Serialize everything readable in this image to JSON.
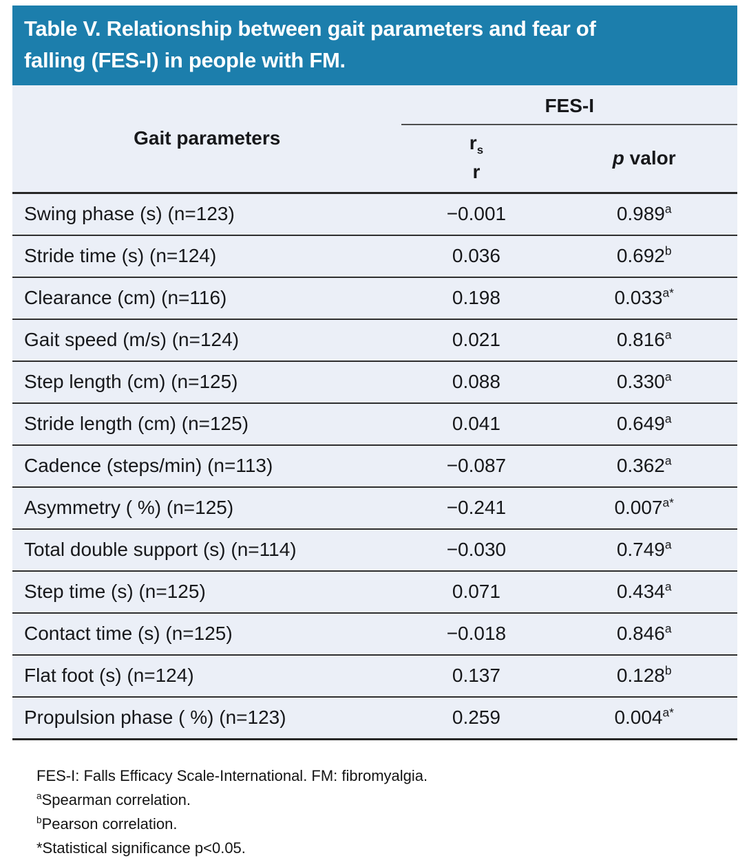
{
  "colors": {
    "accent": "#1c7eac",
    "table_body_bg": "#ebeff7",
    "title_text": "#ffffff",
    "rule_dark": "#262626"
  },
  "table": {
    "title_lines": [
      "Table V. Relationship between gait parameters and fear of",
      "falling (FES-I) in people with FM."
    ],
    "header": {
      "col1": "Gait parameters",
      "group": "FES-I",
      "r_line1_base": "r",
      "r_line1_sub": "s",
      "r_line2": "r",
      "p_italic": "p",
      "p_rest": " valor"
    },
    "rows": [
      {
        "label": "Swing phase (s) (n=123)",
        "r": "−0.001",
        "p": "0.989",
        "p_sup": "a"
      },
      {
        "label": "Stride time (s) (n=124)",
        "r": "0.036",
        "p": "0.692",
        "p_sup": "b"
      },
      {
        "label": "Clearance (cm) (n=116)",
        "r": "0.198",
        "p": "0.033",
        "p_sup": "a*"
      },
      {
        "label": "Gait speed (m/s) (n=124)",
        "r": "0.021",
        "p": "0.816",
        "p_sup": "a"
      },
      {
        "label": "Step length (cm) (n=125)",
        "r": "0.088",
        "p": "0.330",
        "p_sup": "a"
      },
      {
        "label": "Stride length (cm) (n=125)",
        "r": "0.041",
        "p": "0.649",
        "p_sup": "a"
      },
      {
        "label": "Cadence (steps/min) (n=113)",
        "r": "−0.087",
        "p": "0.362",
        "p_sup": "a"
      },
      {
        "label": "Asymmetry ( %) (n=125)",
        "r": "−0.241",
        "p": "0.007",
        "p_sup": "a*"
      },
      {
        "label": "Total double support (s) (n=114)",
        "r": "−0.030",
        "p": "0.749",
        "p_sup": "a"
      },
      {
        "label": "Step time (s) (n=125)",
        "r": "0.071",
        "p": "0.434",
        "p_sup": "a"
      },
      {
        "label": "Contact time (s) (n=125)",
        "r": "−0.018",
        "p": "0.846",
        "p_sup": "a"
      },
      {
        "label": "Flat foot (s) (n=124)",
        "r": "0.137",
        "p": "0.128",
        "p_sup": "b"
      },
      {
        "label": "Propulsion phase ( %) (n=123)",
        "r": "0.259",
        "p": "0.004",
        "p_sup": "a*"
      }
    ]
  },
  "footnotes": [
    {
      "sup": "",
      "text": "FES-I: Falls Efficacy Scale-International. FM: fibromyalgia."
    },
    {
      "sup": "a",
      "text": "Spearman correlation."
    },
    {
      "sup": "b",
      "text": "Pearson correlation."
    },
    {
      "sup": "",
      "text": "*Statistical significance p<0.05."
    }
  ]
}
